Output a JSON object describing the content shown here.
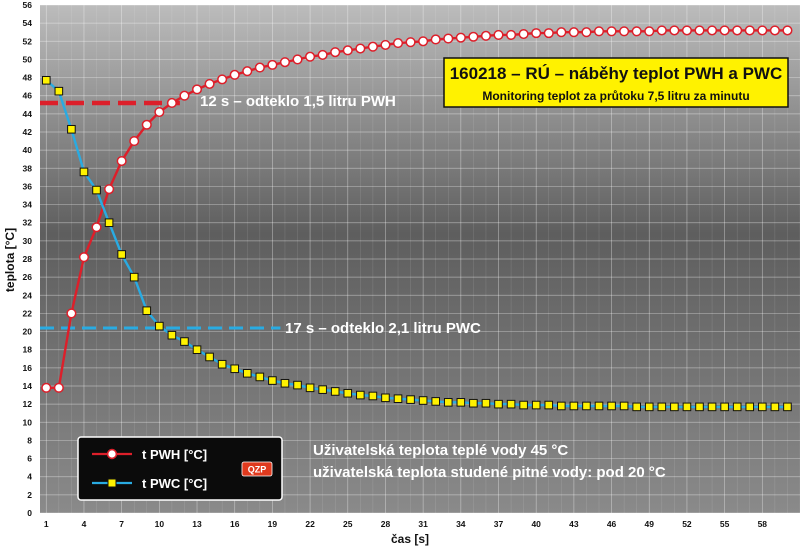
{
  "chart_data": {
    "type": "line",
    "title": "160218 – RÚ – náběhy teplot PWH a PWC",
    "subtitle": "Monitoring teplot za průtoku 7,5 litru za minutu",
    "xlabel": "čas [s]",
    "ylabel": "teplota [°C]",
    "xlim": [
      1,
      61
    ],
    "ylim": [
      0,
      56
    ],
    "y_ticks": [
      0,
      2,
      4,
      6,
      8,
      10,
      12,
      14,
      16,
      18,
      20,
      22,
      24,
      26,
      28,
      30,
      32,
      34,
      36,
      38,
      40,
      42,
      44,
      46,
      48,
      50,
      52,
      54,
      56
    ],
    "x_tick_labels": [
      "1",
      "4",
      "7",
      "10",
      "13",
      "16",
      "19",
      "22",
      "25",
      "28",
      "31",
      "34",
      "37",
      "40",
      "43",
      "46",
      "49",
      "52",
      "55",
      "58"
    ],
    "grid": true,
    "legend_position": "bottom-left",
    "series": [
      {
        "name": "t PWH [°C]",
        "color": "#dd1f2a",
        "marker_fill": "#ffffff",
        "marker": "circle",
        "values": [
          13.8,
          13.8,
          22.0,
          28.2,
          31.5,
          35.7,
          38.8,
          41.0,
          42.8,
          44.2,
          45.2,
          46.0,
          46.7,
          47.3,
          47.8,
          48.3,
          48.7,
          49.1,
          49.4,
          49.7,
          50.0,
          50.3,
          50.5,
          50.8,
          51.0,
          51.2,
          51.4,
          51.6,
          51.8,
          51.9,
          52.0,
          52.2,
          52.3,
          52.4,
          52.5,
          52.6,
          52.7,
          52.7,
          52.8,
          52.9,
          52.9,
          53.0,
          53.0,
          53.0,
          53.1,
          53.1,
          53.1,
          53.1,
          53.1,
          53.2,
          53.2,
          53.2,
          53.2,
          53.2,
          53.2,
          53.2,
          53.2,
          53.2,
          53.2,
          53.2
        ]
      },
      {
        "name": "t PWC [°C]",
        "color": "#29abe2",
        "marker_fill": "#fff200",
        "marker": "square",
        "values": [
          47.7,
          46.5,
          42.3,
          37.6,
          35.6,
          32.0,
          28.5,
          26.0,
          22.3,
          20.6,
          19.6,
          18.9,
          18.0,
          17.2,
          16.4,
          15.9,
          15.4,
          15.0,
          14.6,
          14.3,
          14.1,
          13.8,
          13.6,
          13.4,
          13.2,
          13.0,
          12.9,
          12.7,
          12.6,
          12.5,
          12.4,
          12.3,
          12.2,
          12.2,
          12.1,
          12.1,
          12.0,
          12.0,
          11.9,
          11.9,
          11.9,
          11.8,
          11.8,
          11.8,
          11.8,
          11.8,
          11.8,
          11.7,
          11.7,
          11.7,
          11.7,
          11.7,
          11.7,
          11.7,
          11.7,
          11.7,
          11.7,
          11.7,
          11.7,
          11.7
        ]
      }
    ],
    "reference_lines": [
      {
        "name": "PWH",
        "y": 45.2,
        "color": "#dd1f2a",
        "x_from": 1,
        "x_to": 11,
        "label": "12 s – odteklo 1,5 litru PWH"
      },
      {
        "name": "PWC",
        "y": 20.4,
        "color": "#29abe2",
        "x_from": 1,
        "x_to": 19,
        "label": "17 s – odteklo 2,1 litru PWC"
      }
    ]
  },
  "notes": {
    "line1": "Uživatelská teplota teplé vody 45 °C",
    "line2": "uživatelská teplota studené pitné vody: pod 20 °C"
  },
  "logo": {
    "text": "QZP"
  }
}
